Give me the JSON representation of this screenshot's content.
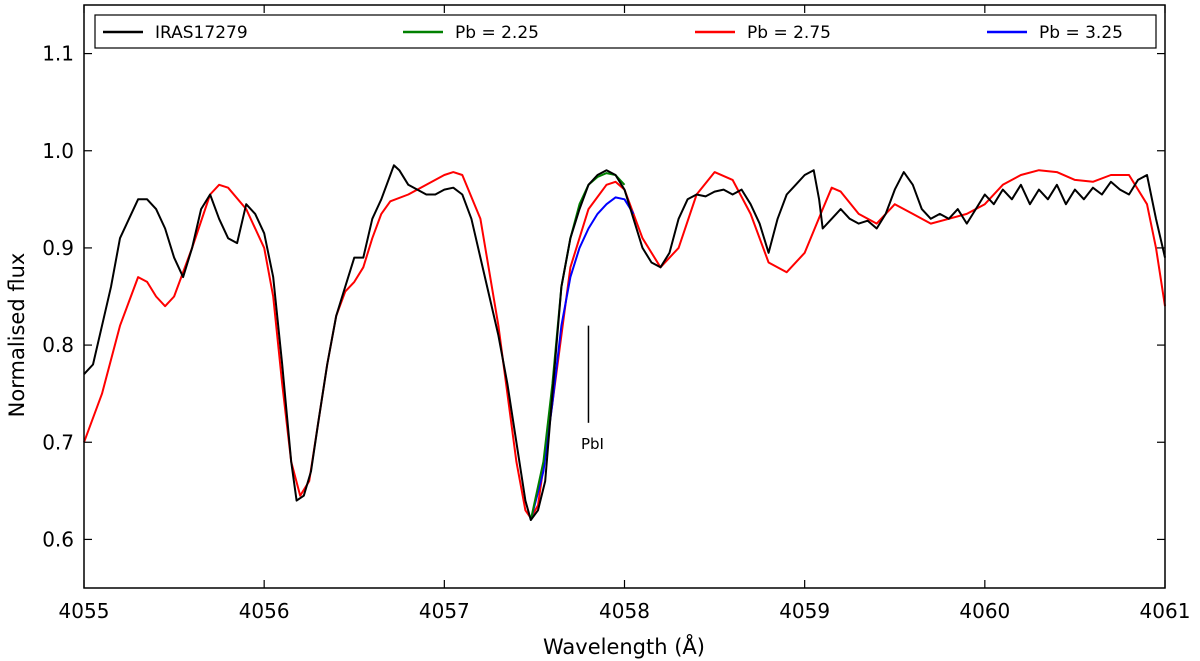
{
  "chart_data": {
    "type": "line",
    "xlabel": "Wavelength (Å)",
    "ylabel": "Normalised flux",
    "xlim": [
      4055,
      4061
    ],
    "ylim": [
      0.55,
      1.15
    ],
    "xticks": [
      4055,
      4056,
      4057,
      4058,
      4059,
      4060,
      4061
    ],
    "yticks": [
      0.6,
      0.7,
      0.8,
      0.9,
      1.0,
      1.1
    ],
    "xtick_labels": [
      "4055",
      "4056",
      "4057",
      "4058",
      "4059",
      "4060",
      "4061"
    ],
    "ytick_labels": [
      "0.6",
      "0.7",
      "0.8",
      "0.9",
      "1.0",
      "1.1"
    ],
    "grid": false,
    "legend_position": "top",
    "annotation": {
      "text": "PbI",
      "x": 4057.8,
      "y_top": 0.82,
      "y_bottom": 0.72
    },
    "series": [
      {
        "name": "IRAS17279",
        "color": "#000000",
        "points": [
          [
            4055.0,
            0.77
          ],
          [
            4055.05,
            0.78
          ],
          [
            4055.1,
            0.82
          ],
          [
            4055.15,
            0.86
          ],
          [
            4055.2,
            0.91
          ],
          [
            4055.25,
            0.93
          ],
          [
            4055.3,
            0.95
          ],
          [
            4055.35,
            0.95
          ],
          [
            4055.4,
            0.94
          ],
          [
            4055.45,
            0.92
          ],
          [
            4055.5,
            0.89
          ],
          [
            4055.55,
            0.87
          ],
          [
            4055.6,
            0.9
          ],
          [
            4055.65,
            0.94
          ],
          [
            4055.7,
            0.955
          ],
          [
            4055.75,
            0.93
          ],
          [
            4055.8,
            0.91
          ],
          [
            4055.85,
            0.905
          ],
          [
            4055.9,
            0.945
          ],
          [
            4055.95,
            0.935
          ],
          [
            4056.0,
            0.915
          ],
          [
            4056.05,
            0.87
          ],
          [
            4056.1,
            0.78
          ],
          [
            4056.15,
            0.68
          ],
          [
            4056.18,
            0.64
          ],
          [
            4056.22,
            0.645
          ],
          [
            4056.26,
            0.67
          ],
          [
            4056.3,
            0.72
          ],
          [
            4056.35,
            0.78
          ],
          [
            4056.4,
            0.83
          ],
          [
            4056.45,
            0.86
          ],
          [
            4056.5,
            0.89
          ],
          [
            4056.55,
            0.89
          ],
          [
            4056.6,
            0.93
          ],
          [
            4056.65,
            0.95
          ],
          [
            4056.7,
            0.975
          ],
          [
            4056.72,
            0.985
          ],
          [
            4056.75,
            0.98
          ],
          [
            4056.8,
            0.965
          ],
          [
            4056.85,
            0.96
          ],
          [
            4056.9,
            0.955
          ],
          [
            4056.95,
            0.955
          ],
          [
            4057.0,
            0.96
          ],
          [
            4057.05,
            0.962
          ],
          [
            4057.1,
            0.955
          ],
          [
            4057.15,
            0.93
          ],
          [
            4057.2,
            0.89
          ],
          [
            4057.25,
            0.85
          ],
          [
            4057.3,
            0.81
          ],
          [
            4057.35,
            0.76
          ],
          [
            4057.4,
            0.7
          ],
          [
            4057.45,
            0.64
          ],
          [
            4057.48,
            0.62
          ],
          [
            4057.52,
            0.63
          ],
          [
            4057.56,
            0.66
          ],
          [
            4057.6,
            0.75
          ],
          [
            4057.65,
            0.86
          ],
          [
            4057.7,
            0.91
          ],
          [
            4057.75,
            0.94
          ],
          [
            4057.8,
            0.965
          ],
          [
            4057.85,
            0.975
          ],
          [
            4057.9,
            0.98
          ],
          [
            4057.95,
            0.975
          ],
          [
            4058.0,
            0.96
          ],
          [
            4058.05,
            0.93
          ],
          [
            4058.1,
            0.9
          ],
          [
            4058.15,
            0.885
          ],
          [
            4058.2,
            0.88
          ],
          [
            4058.25,
            0.895
          ],
          [
            4058.3,
            0.93
          ],
          [
            4058.35,
            0.95
          ],
          [
            4058.4,
            0.955
          ],
          [
            4058.45,
            0.953
          ],
          [
            4058.5,
            0.958
          ],
          [
            4058.55,
            0.96
          ],
          [
            4058.6,
            0.955
          ],
          [
            4058.65,
            0.96
          ],
          [
            4058.7,
            0.945
          ],
          [
            4058.75,
            0.925
          ],
          [
            4058.8,
            0.895
          ],
          [
            4058.85,
            0.93
          ],
          [
            4058.9,
            0.955
          ],
          [
            4058.95,
            0.965
          ],
          [
            4059.0,
            0.975
          ],
          [
            4059.05,
            0.98
          ],
          [
            4059.08,
            0.95
          ],
          [
            4059.1,
            0.92
          ],
          [
            4059.15,
            0.93
          ],
          [
            4059.2,
            0.94
          ],
          [
            4059.25,
            0.93
          ],
          [
            4059.3,
            0.925
          ],
          [
            4059.35,
            0.928
          ],
          [
            4059.4,
            0.92
          ],
          [
            4059.45,
            0.935
          ],
          [
            4059.5,
            0.96
          ],
          [
            4059.55,
            0.978
          ],
          [
            4059.6,
            0.965
          ],
          [
            4059.65,
            0.94
          ],
          [
            4059.7,
            0.93
          ],
          [
            4059.75,
            0.935
          ],
          [
            4059.8,
            0.93
          ],
          [
            4059.85,
            0.94
          ],
          [
            4059.9,
            0.925
          ],
          [
            4059.95,
            0.94
          ],
          [
            4060.0,
            0.955
          ],
          [
            4060.05,
            0.945
          ],
          [
            4060.1,
            0.96
          ],
          [
            4060.15,
            0.95
          ],
          [
            4060.2,
            0.965
          ],
          [
            4060.25,
            0.945
          ],
          [
            4060.3,
            0.96
          ],
          [
            4060.35,
            0.95
          ],
          [
            4060.4,
            0.965
          ],
          [
            4060.45,
            0.945
          ],
          [
            4060.5,
            0.96
          ],
          [
            4060.55,
            0.95
          ],
          [
            4060.6,
            0.962
          ],
          [
            4060.65,
            0.955
          ],
          [
            4060.7,
            0.968
          ],
          [
            4060.75,
            0.96
          ],
          [
            4060.8,
            0.955
          ],
          [
            4060.85,
            0.97
          ],
          [
            4060.9,
            0.975
          ],
          [
            4060.95,
            0.93
          ],
          [
            4061.0,
            0.89
          ]
        ]
      },
      {
        "name": "Pb = 2.25",
        "color": "#008000",
        "points": [
          [
            4057.48,
            0.62
          ],
          [
            4057.55,
            0.68
          ],
          [
            4057.6,
            0.76
          ],
          [
            4057.65,
            0.86
          ],
          [
            4057.7,
            0.91
          ],
          [
            4057.75,
            0.945
          ],
          [
            4057.8,
            0.965
          ],
          [
            4057.85,
            0.973
          ],
          [
            4057.9,
            0.977
          ],
          [
            4057.95,
            0.975
          ],
          [
            4058.0,
            0.965
          ]
        ]
      },
      {
        "name": "Pb = 2.75",
        "color": "#ff0000",
        "points": [
          [
            4055.0,
            0.7
          ],
          [
            4055.1,
            0.75
          ],
          [
            4055.2,
            0.82
          ],
          [
            4055.3,
            0.87
          ],
          [
            4055.35,
            0.865
          ],
          [
            4055.4,
            0.85
          ],
          [
            4055.45,
            0.84
          ],
          [
            4055.5,
            0.85
          ],
          [
            4055.6,
            0.9
          ],
          [
            4055.7,
            0.955
          ],
          [
            4055.75,
            0.965
          ],
          [
            4055.8,
            0.962
          ],
          [
            4055.9,
            0.94
          ],
          [
            4056.0,
            0.9
          ],
          [
            4056.05,
            0.85
          ],
          [
            4056.1,
            0.76
          ],
          [
            4056.15,
            0.68
          ],
          [
            4056.2,
            0.645
          ],
          [
            4056.25,
            0.66
          ],
          [
            4056.3,
            0.72
          ],
          [
            4056.35,
            0.78
          ],
          [
            4056.4,
            0.83
          ],
          [
            4056.45,
            0.855
          ],
          [
            4056.5,
            0.865
          ],
          [
            4056.55,
            0.88
          ],
          [
            4056.6,
            0.91
          ],
          [
            4056.65,
            0.935
          ],
          [
            4056.7,
            0.948
          ],
          [
            4056.8,
            0.955
          ],
          [
            4056.9,
            0.965
          ],
          [
            4057.0,
            0.975
          ],
          [
            4057.05,
            0.978
          ],
          [
            4057.1,
            0.975
          ],
          [
            4057.2,
            0.93
          ],
          [
            4057.3,
            0.82
          ],
          [
            4057.4,
            0.68
          ],
          [
            4057.45,
            0.63
          ],
          [
            4057.48,
            0.622
          ],
          [
            4057.52,
            0.635
          ],
          [
            4057.6,
            0.74
          ],
          [
            4057.7,
            0.88
          ],
          [
            4057.8,
            0.94
          ],
          [
            4057.9,
            0.965
          ],
          [
            4057.95,
            0.968
          ],
          [
            4058.0,
            0.96
          ],
          [
            4058.1,
            0.91
          ],
          [
            4058.2,
            0.88
          ],
          [
            4058.3,
            0.9
          ],
          [
            4058.4,
            0.955
          ],
          [
            4058.5,
            0.978
          ],
          [
            4058.6,
            0.97
          ],
          [
            4058.7,
            0.935
          ],
          [
            4058.8,
            0.885
          ],
          [
            4058.9,
            0.875
          ],
          [
            4059.0,
            0.895
          ],
          [
            4059.1,
            0.94
          ],
          [
            4059.15,
            0.962
          ],
          [
            4059.2,
            0.958
          ],
          [
            4059.3,
            0.935
          ],
          [
            4059.4,
            0.925
          ],
          [
            4059.5,
            0.945
          ],
          [
            4059.6,
            0.935
          ],
          [
            4059.7,
            0.925
          ],
          [
            4059.8,
            0.93
          ],
          [
            4059.9,
            0.935
          ],
          [
            4060.0,
            0.945
          ],
          [
            4060.1,
            0.965
          ],
          [
            4060.2,
            0.975
          ],
          [
            4060.3,
            0.98
          ],
          [
            4060.4,
            0.978
          ],
          [
            4060.5,
            0.97
          ],
          [
            4060.6,
            0.968
          ],
          [
            4060.7,
            0.975
          ],
          [
            4060.8,
            0.975
          ],
          [
            4060.9,
            0.945
          ],
          [
            4060.95,
            0.9
          ],
          [
            4061.0,
            0.84
          ]
        ]
      },
      {
        "name": "Pb = 3.25",
        "color": "#0000ff",
        "points": [
          [
            4057.48,
            0.62
          ],
          [
            4057.55,
            0.67
          ],
          [
            4057.6,
            0.74
          ],
          [
            4057.65,
            0.82
          ],
          [
            4057.7,
            0.87
          ],
          [
            4057.75,
            0.9
          ],
          [
            4057.8,
            0.92
          ],
          [
            4057.85,
            0.935
          ],
          [
            4057.9,
            0.945
          ],
          [
            4057.95,
            0.952
          ],
          [
            4058.0,
            0.95
          ],
          [
            4058.05,
            0.935
          ]
        ]
      }
    ]
  }
}
